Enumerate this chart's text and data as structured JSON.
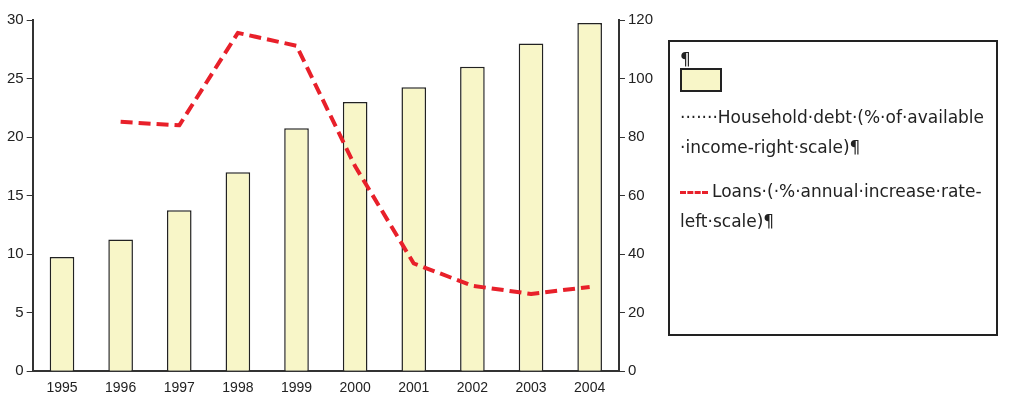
{
  "chart_data": {
    "type": "bar",
    "categories": [
      "1995",
      "1996",
      "1997",
      "1998",
      "1999",
      "2000",
      "2001",
      "2002",
      "2003",
      "2004"
    ],
    "series": [
      {
        "name": "·······Household·debt·(%·of·available·income-right·scale)¶",
        "axis": "y2",
        "color": "#f8f6c8",
        "values": [
          39,
          45,
          55,
          68,
          83,
          92,
          97,
          104,
          112,
          119
        ]
      },
      {
        "name": "Loans·(·%·annual·increase·rate-left·scale)¶",
        "type": "line",
        "color": "#e8202a",
        "line_style": "dashed",
        "marker": "none",
        "values": [
          null,
          21.3,
          21.0,
          28.9,
          27.8,
          17.5,
          9.2,
          7.3,
          6.6,
          7.2
        ]
      }
    ],
    "ylim": [
      0,
      30
    ],
    "yticks": [
      0,
      5,
      10,
      15,
      20,
      25,
      30
    ],
    "y2lim": [
      0,
      120
    ],
    "y2ticks": [
      0,
      20,
      40,
      60,
      80,
      100,
      120
    ],
    "grid": false,
    "legend": "right",
    "annotations": [
      "¶"
    ]
  }
}
